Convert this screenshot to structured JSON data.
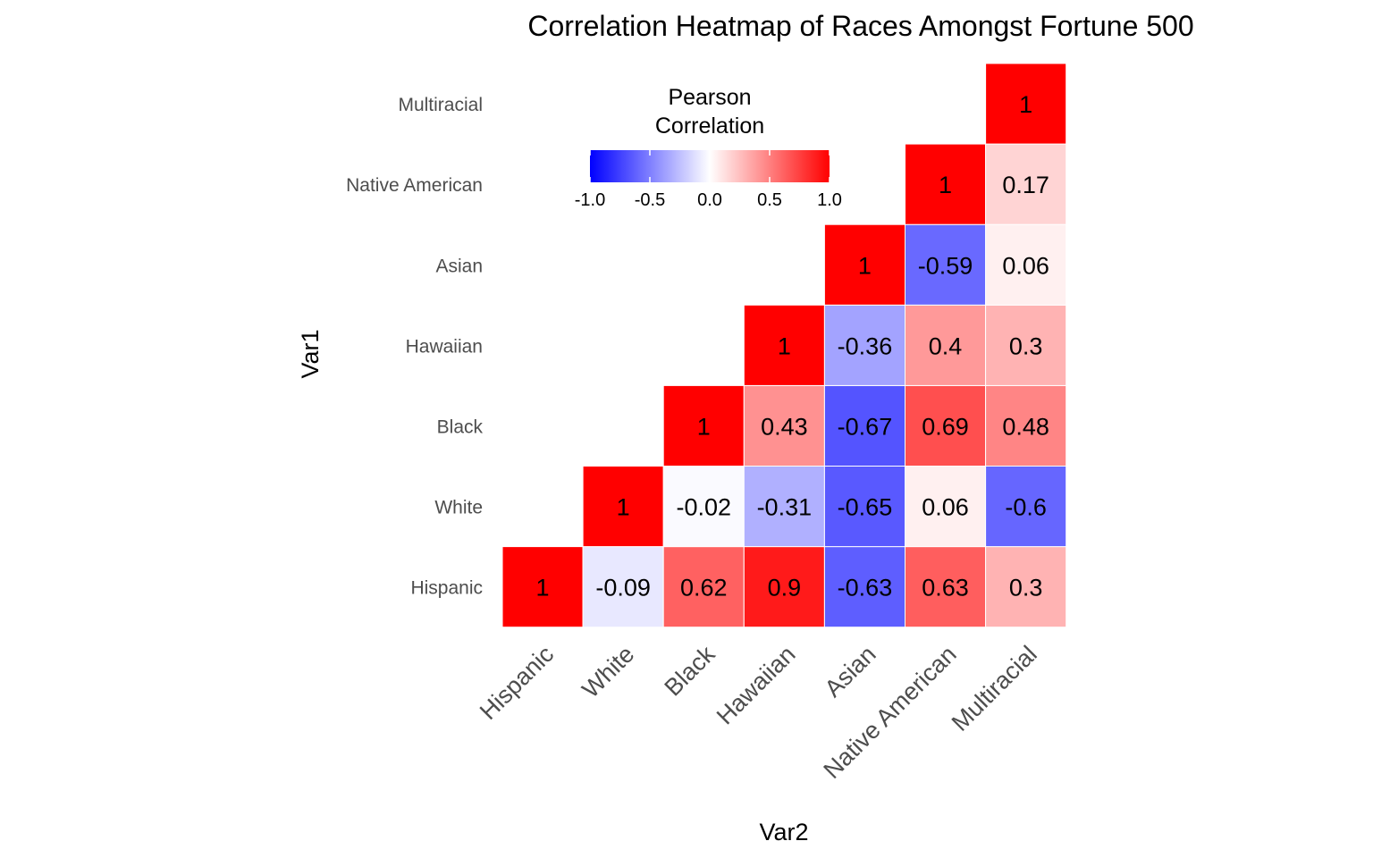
{
  "chart_data": {
    "type": "heatmap",
    "title": "Correlation Heatmap of Races Amongst Fortune 500",
    "xlabel": "Var2",
    "ylabel": "Var1",
    "categories": [
      "Hispanic",
      "White",
      "Black",
      "Hawaiian",
      "Asian",
      "Native American",
      "Multiracial"
    ],
    "cells": [
      {
        "var1": "Hispanic",
        "var2": "Hispanic",
        "value": 1,
        "label": "1"
      },
      {
        "var1": "Hispanic",
        "var2": "White",
        "value": -0.09,
        "label": "-0.09"
      },
      {
        "var1": "Hispanic",
        "var2": "Black",
        "value": 0.62,
        "label": "0.62"
      },
      {
        "var1": "Hispanic",
        "var2": "Hawaiian",
        "value": 0.9,
        "label": "0.9"
      },
      {
        "var1": "Hispanic",
        "var2": "Asian",
        "value": -0.63,
        "label": "-0.63"
      },
      {
        "var1": "Hispanic",
        "var2": "Native American",
        "value": 0.63,
        "label": "0.63"
      },
      {
        "var1": "Hispanic",
        "var2": "Multiracial",
        "value": 0.3,
        "label": "0.3"
      },
      {
        "var1": "White",
        "var2": "White",
        "value": 1,
        "label": "1"
      },
      {
        "var1": "White",
        "var2": "Black",
        "value": -0.02,
        "label": "-0.02"
      },
      {
        "var1": "White",
        "var2": "Hawaiian",
        "value": -0.31,
        "label": "-0.31"
      },
      {
        "var1": "White",
        "var2": "Asian",
        "value": -0.65,
        "label": "-0.65"
      },
      {
        "var1": "White",
        "var2": "Native American",
        "value": 0.06,
        "label": "0.06"
      },
      {
        "var1": "White",
        "var2": "Multiracial",
        "value": -0.6,
        "label": "-0.6"
      },
      {
        "var1": "Black",
        "var2": "Black",
        "value": 1,
        "label": "1"
      },
      {
        "var1": "Black",
        "var2": "Hawaiian",
        "value": 0.43,
        "label": "0.43"
      },
      {
        "var1": "Black",
        "var2": "Asian",
        "value": -0.67,
        "label": "-0.67"
      },
      {
        "var1": "Black",
        "var2": "Native American",
        "value": 0.69,
        "label": "0.69"
      },
      {
        "var1": "Black",
        "var2": "Multiracial",
        "value": 0.48,
        "label": "0.48"
      },
      {
        "var1": "Hawaiian",
        "var2": "Hawaiian",
        "value": 1,
        "label": "1"
      },
      {
        "var1": "Hawaiian",
        "var2": "Asian",
        "value": -0.36,
        "label": "-0.36"
      },
      {
        "var1": "Hawaiian",
        "var2": "Native American",
        "value": 0.4,
        "label": "0.4"
      },
      {
        "var1": "Hawaiian",
        "var2": "Multiracial",
        "value": 0.3,
        "label": "0.3"
      },
      {
        "var1": "Asian",
        "var2": "Asian",
        "value": 1,
        "label": "1"
      },
      {
        "var1": "Asian",
        "var2": "Native American",
        "value": -0.59,
        "label": "-0.59"
      },
      {
        "var1": "Asian",
        "var2": "Multiracial",
        "value": 0.06,
        "label": "0.06"
      },
      {
        "var1": "Native American",
        "var2": "Native American",
        "value": 1,
        "label": "1"
      },
      {
        "var1": "Native American",
        "var2": "Multiracial",
        "value": 0.17,
        "label": "0.17"
      },
      {
        "var1": "Multiracial",
        "var2": "Multiracial",
        "value": 1,
        "label": "1"
      }
    ],
    "color_scale": {
      "low": "#0000ff",
      "mid": "#ffffff",
      "high": "#ff0000",
      "limits": [
        -1,
        1
      ]
    },
    "legend": {
      "title_lines": [
        "Pearson",
        "Correlation"
      ],
      "ticks": [
        -1.0,
        -0.5,
        0.0,
        0.5,
        1.0
      ],
      "tick_labels": [
        "-1.0",
        "-0.5",
        "0.0",
        "0.5",
        "1.0"
      ],
      "placement": "top-center"
    },
    "grid": false
  }
}
